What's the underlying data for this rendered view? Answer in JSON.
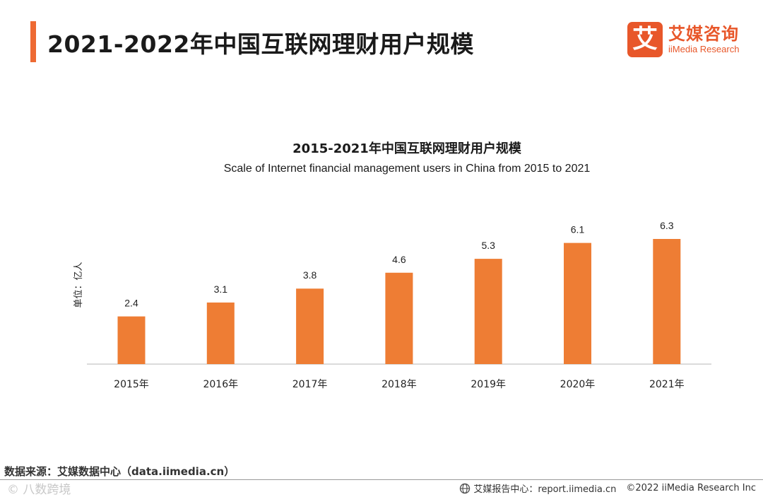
{
  "header": {
    "title": "2021-2022年中国互联网理财用户规模",
    "logo_mark": "艾",
    "logo_cn": "艾媒咨询",
    "logo_en": "iiMedia Research"
  },
  "chart_data": {
    "type": "bar",
    "title": "2015-2021年中国互联网理财用户规模",
    "subtitle": "Scale of Internet financial management users in China from 2015 to 2021",
    "ylabel": "单位：亿人",
    "categories": [
      "2015年",
      "2016年",
      "2017年",
      "2018年",
      "2019年",
      "2020年",
      "2021年"
    ],
    "values": [
      2.4,
      3.1,
      3.8,
      4.6,
      5.3,
      6.1,
      6.3
    ],
    "ylim": [
      0,
      6.3
    ],
    "bar_color": "#ee7d34",
    "grid": false,
    "legend": "none"
  },
  "footer": {
    "source": "数据来源：艾媒数据中心（data.iimedia.cn）",
    "watermark": "©  八数跨境",
    "report": "艾媒报告中心：report.iimedia.cn",
    "copyright": "©2022  iiMedia Research  Inc"
  },
  "colors": {
    "accent": "#ee6a33",
    "brand": "#e8572a",
    "bar": "#ee7d34"
  }
}
